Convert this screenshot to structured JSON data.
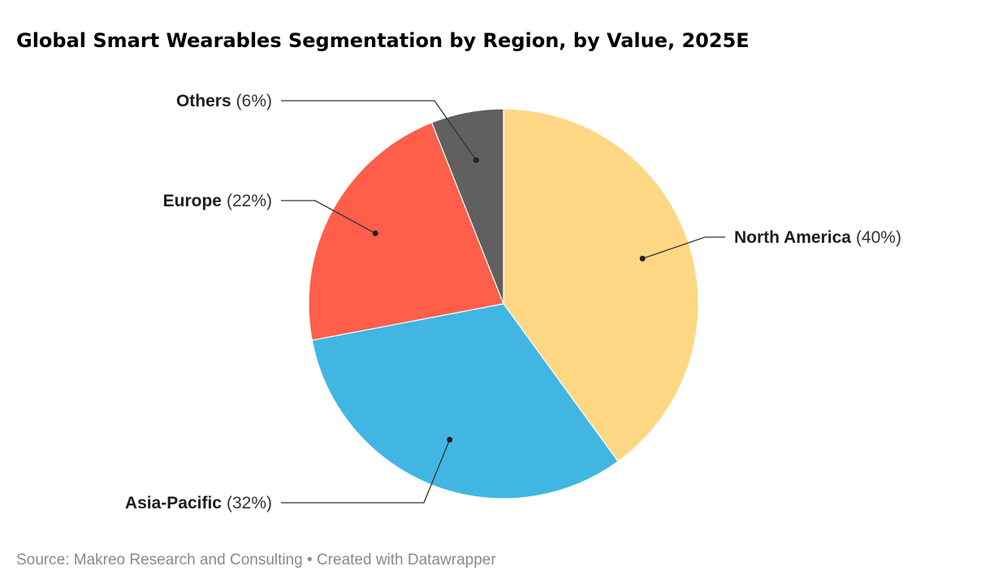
{
  "title": "Global Smart Wearables Segmentation by Region, by Value, 2025E",
  "source": "Source: Makreo Research and Consulting • Created with Datawrapper",
  "chart_data": {
    "type": "pie",
    "title": "Global Smart Wearables Segmentation by Region, by Value, 2025E",
    "slices": [
      {
        "label": "North America",
        "value": 40,
        "pct_label": "(40%)",
        "color": "#fdd784"
      },
      {
        "label": "Asia-Pacific",
        "value": 32,
        "pct_label": "(32%)",
        "color": "#41b6e2"
      },
      {
        "label": "Europe",
        "value": 22,
        "pct_label": "(22%)",
        "color": "#ff5e4b"
      },
      {
        "label": "Others",
        "value": 6,
        "pct_label": "(6%)",
        "color": "#606060"
      }
    ]
  }
}
